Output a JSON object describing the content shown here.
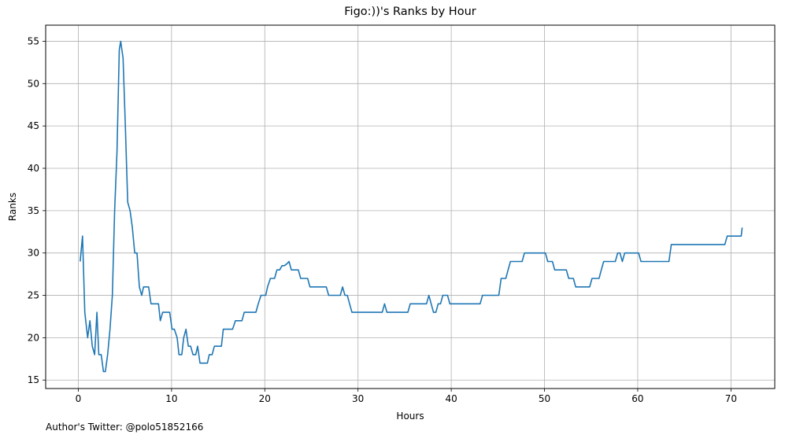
{
  "chart_data": {
    "type": "line",
    "title": "Figo:))'s Ranks by Hour",
    "xlabel": "Hours",
    "ylabel": "Ranks",
    "xlim": [
      -3.5,
      74.7
    ],
    "ylim": [
      14.0,
      56.9
    ],
    "xticks": [
      0,
      10,
      20,
      30,
      40,
      50,
      60,
      70
    ],
    "yticks": [
      15,
      20,
      25,
      30,
      35,
      40,
      45,
      50,
      55
    ],
    "grid": true,
    "line_color": "#1f77b4",
    "series": [
      {
        "x": [
          0.2,
          0.45,
          0.7,
          1.0,
          1.25,
          1.5,
          1.75,
          2.0,
          2.2,
          2.45,
          2.7,
          2.9,
          3.15,
          3.4,
          3.65,
          3.9,
          4.15,
          4.4,
          4.55,
          4.8,
          5.05,
          5.3,
          5.55,
          5.8,
          6.05,
          6.3,
          6.55,
          6.8,
          7.0,
          7.3,
          7.55,
          7.8,
          8.05,
          8.3,
          8.6,
          8.8,
          9.05,
          9.3,
          9.5,
          9.8,
          10.05,
          10.3,
          10.6,
          10.8,
          11.1,
          11.3,
          11.55,
          11.8,
          12.05,
          12.3,
          12.6,
          12.8,
          13.05,
          13.3,
          13.6,
          13.85,
          14.05,
          14.35,
          14.6,
          14.8,
          15.1,
          15.35,
          15.55,
          15.8,
          16.1,
          16.3,
          16.55,
          16.85,
          17.1,
          17.3,
          17.55,
          17.8,
          18.1,
          18.3,
          18.6,
          18.85,
          19.05,
          19.3,
          19.6,
          19.85,
          20.1,
          20.3,
          20.6,
          20.85,
          21.05,
          21.3,
          21.6,
          21.85,
          22.1,
          22.35,
          22.6,
          22.85,
          23.1,
          23.35,
          23.6,
          23.85,
          24.1,
          24.35,
          24.6,
          24.85,
          25.1,
          25.35,
          25.6,
          25.85,
          26.1,
          26.35,
          26.6,
          26.85,
          27.1,
          27.35,
          27.6,
          27.85,
          28.1,
          28.35,
          28.6,
          28.85,
          29.1,
          29.35,
          29.6,
          29.85,
          30.1,
          30.35,
          30.6,
          30.85,
          31.1,
          31.35,
          31.6,
          31.85,
          32.1,
          32.35,
          32.6,
          32.85,
          33.1,
          33.35,
          33.6,
          33.85,
          34.1,
          34.35,
          34.6,
          34.85,
          35.1,
          35.35,
          35.6,
          35.85,
          36.1,
          36.35,
          36.6,
          36.85,
          37.1,
          37.35,
          37.6,
          37.85,
          38.1,
          38.35,
          38.6,
          38.85,
          39.1,
          39.35,
          39.6,
          39.85,
          40.1,
          40.35,
          40.6,
          40.85,
          41.1,
          41.35,
          41.6,
          41.85,
          42.1,
          42.35,
          42.6,
          42.85,
          43.1,
          43.35,
          43.6,
          43.85,
          44.1,
          44.35,
          44.6,
          44.85,
          45.1,
          45.35,
          45.6,
          45.85,
          46.1,
          46.35,
          46.6,
          46.85,
          47.1,
          47.35,
          47.6,
          47.85,
          48.1,
          48.35,
          48.6,
          48.85,
          49.1,
          49.35,
          49.6,
          49.85,
          50.1,
          50.35,
          50.6,
          50.85,
          51.1,
          51.35,
          51.6,
          51.85,
          52.1,
          52.35,
          52.6,
          52.85,
          53.1,
          53.35,
          53.6,
          53.85,
          54.1,
          54.35,
          54.6,
          54.85,
          55.1,
          55.35,
          55.6,
          55.85,
          56.1,
          56.35,
          56.6,
          56.85,
          57.1,
          57.35,
          57.6,
          57.85,
          58.1,
          58.35,
          58.6,
          58.85,
          59.1,
          59.35,
          59.6,
          59.85,
          60.1,
          60.35,
          60.6,
          60.85,
          61.1,
          61.35,
          61.6,
          61.85,
          62.1,
          62.35,
          62.6,
          62.85,
          63.1,
          63.35,
          63.6,
          63.85,
          64.1,
          64.35,
          64.6,
          64.85,
          65.1,
          65.35,
          65.6,
          65.85,
          66.1,
          66.35,
          66.6,
          66.85,
          67.1,
          67.35,
          67.6,
          67.85,
          68.1,
          68.35,
          68.6,
          68.85,
          69.1,
          69.35,
          69.6,
          69.85,
          70.1,
          70.35,
          70.6,
          70.85,
          71.1,
          71.2
        ],
        "values": [
          29,
          32,
          23,
          20,
          22,
          19,
          18,
          23,
          18,
          18,
          16,
          16,
          18,
          21,
          25,
          35,
          42,
          54,
          55,
          53,
          45,
          36,
          35,
          33,
          30,
          30,
          26,
          25,
          26,
          26,
          26,
          24,
          24,
          24,
          24,
          22,
          23,
          23,
          23,
          23,
          21,
          21,
          20,
          18,
          18,
          20,
          21,
          19,
          19,
          18,
          18,
          19,
          17,
          17,
          17,
          17,
          18,
          18,
          19,
          19,
          19,
          19,
          21,
          21,
          21,
          21,
          21,
          22,
          22,
          22,
          22,
          23,
          23,
          23,
          23,
          23,
          23,
          24,
          25,
          25,
          25,
          26,
          27,
          27,
          27,
          28,
          28,
          28.5,
          28.5,
          28.7,
          29,
          28,
          28,
          28,
          28,
          27,
          27,
          27,
          27,
          26,
          26,
          26,
          26,
          26,
          26,
          26,
          26,
          25,
          25,
          25,
          25,
          25,
          25,
          26,
          25,
          25,
          24,
          23,
          23,
          23,
          23,
          23,
          23,
          23,
          23,
          23,
          23,
          23,
          23,
          23,
          23,
          24,
          23,
          23,
          23,
          23,
          23,
          23,
          23,
          23,
          23,
          23,
          24,
          24,
          24,
          24,
          24,
          24,
          24,
          24,
          25,
          24,
          23,
          23,
          24,
          24,
          25,
          25,
          25,
          24,
          24,
          24,
          24,
          24,
          24,
          24,
          24,
          24,
          24,
          24,
          24,
          24,
          24,
          25,
          25,
          25,
          25,
          25,
          25,
          25,
          25,
          27,
          27,
          27,
          28,
          29,
          29,
          29,
          29,
          29,
          29,
          30,
          30,
          30,
          30,
          30,
          30,
          30,
          30,
          30,
          30,
          29,
          29,
          29,
          28,
          28,
          28,
          28,
          28,
          28,
          27,
          27,
          27,
          26,
          26,
          26,
          26,
          26,
          26,
          26,
          27,
          27,
          27,
          27,
          28,
          29,
          29,
          29,
          29,
          29,
          29,
          30,
          30,
          29,
          30,
          30,
          30,
          30,
          30,
          30,
          30,
          29,
          29,
          29,
          29,
          29,
          29,
          29,
          29,
          29,
          29,
          29,
          29,
          29,
          31,
          31,
          31,
          31,
          31,
          31,
          31,
          31,
          31,
          31,
          31,
          31,
          31,
          31,
          31,
          31,
          31,
          31,
          31,
          31,
          31,
          31,
          31,
          31,
          32,
          32,
          32,
          32,
          32,
          32,
          32,
          33
        ]
      }
    ]
  },
  "footnote": "Author's Twitter: @polo51852166"
}
